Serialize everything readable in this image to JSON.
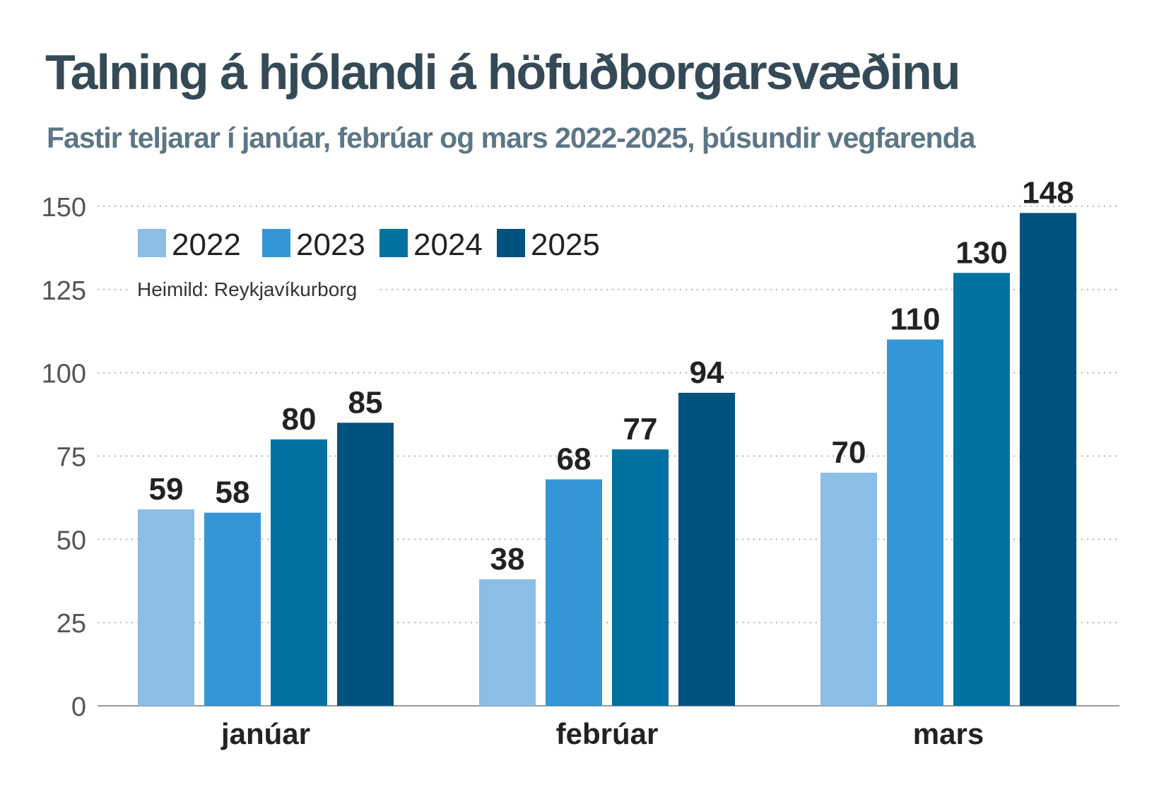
{
  "title": "Talning á hjólandi á höfuðborgarsvæðinu",
  "subtitle": "Fastir teljarar í janúar, febrúar og mars 2022-2025, þúsundir vegfarenda",
  "source": "Heimild: Reykjavíkurborg",
  "chart_data": {
    "type": "bar",
    "categories": [
      "janúar",
      "febrúar",
      "mars"
    ],
    "series": [
      {
        "name": "2022",
        "color": "#8bbde5",
        "values": [
          59,
          38,
          70
        ]
      },
      {
        "name": "2023",
        "color": "#3496d5",
        "values": [
          58,
          68,
          110
        ]
      },
      {
        "name": "2024",
        "color": "#0072a2",
        "values": [
          80,
          77,
          130
        ]
      },
      {
        "name": "2025",
        "color": "#00527f",
        "values": [
          85,
          94,
          148
        ]
      }
    ],
    "yticks": [
      "0",
      "25",
      "50",
      "75",
      "100",
      "125",
      "150"
    ],
    "ylim": [
      0,
      150
    ],
    "grid": true,
    "legend": "top-left"
  }
}
